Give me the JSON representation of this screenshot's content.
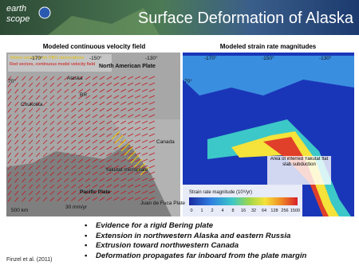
{
  "header": {
    "logo": [
      "earth",
      "scope"
    ],
    "title": "Surface Deformation of Alaska"
  },
  "left_panel": {
    "title": "Modeled continuous velocity field",
    "legend": [
      "Yellow vectors from PBO observations",
      "Red vectors, continuous model velocity field"
    ],
    "lon_labels": [
      "-170°",
      "-150°",
      "-130°"
    ],
    "lat_label": "70°",
    "labels": [
      "North American Plate",
      "Alaska",
      "BR",
      "Chukotka",
      "Canada",
      "Yakutat microplate",
      "Pacific Plate",
      "Juan de Fuca Plate"
    ],
    "scale": [
      "500 km",
      "30 mm/yr"
    ]
  },
  "right_panel": {
    "title": "Modeled strain rate magnitudes",
    "lon_labels": [
      "-170°",
      "-150°",
      "-130°"
    ],
    "lat_label": "70°",
    "annotation": "Area of inferred Yakutat flat slab subduction",
    "colorbar_title": "Strain rate magnitude (10⁹/yr)",
    "colorbar_ticks": [
      "0",
      "1",
      "2",
      "4",
      "8",
      "16",
      "32",
      "64",
      "128",
      "256",
      "1500"
    ]
  },
  "bullets": [
    "Evidence for a rigid Bering plate",
    "Extension in northwestern Alaska and eastern Russia",
    "Extrusion toward northwestern Canada",
    "Deformation propagates far inboard from the plate margin"
  ],
  "citation": "Finzel et al. (2011)"
}
